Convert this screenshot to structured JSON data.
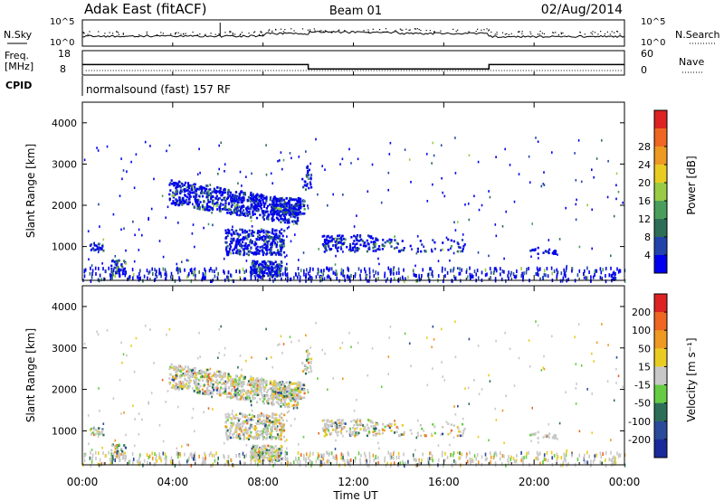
{
  "header": {
    "station": "Adak East (fitACF)",
    "beam": "Beam 01",
    "date": "02/Aug/2014"
  },
  "noise_panel": {
    "left_label": "N.Sky",
    "right_label": "N.Search",
    "left_ticks": [
      "10^5",
      "10^0"
    ],
    "right_ticks": [
      "10^5",
      "10^0"
    ]
  },
  "freq_panel": {
    "left_label_1": "Freq.",
    "left_label_2": "[MHz]",
    "left_ticks": [
      "18",
      "8"
    ],
    "right_ticks": [
      "60",
      "0"
    ],
    "right_label": "Nave",
    "cpid_label": "CPID",
    "cpid_text": "normalsound (fast) 157 RF",
    "freq_steps": [
      {
        "start_h": 0.0,
        "end_h": 10.0,
        "freq_mhz": 12.8
      },
      {
        "start_h": 10.0,
        "end_h": 18.0,
        "freq_mhz": 10.6
      },
      {
        "start_h": 18.0,
        "end_h": 24.0,
        "freq_mhz": 12.8
      }
    ],
    "nave_level": 11
  },
  "chart_data": [
    {
      "type": "heatmap",
      "name": "power",
      "ylabel": "Slant Range [km]",
      "y_ticks": [
        "1000",
        "2000",
        "3000",
        "4000"
      ],
      "y_tick_values": [
        1000,
        2000,
        3000,
        4000
      ],
      "ylim": [
        180,
        4500
      ],
      "xlim": [
        0,
        24
      ],
      "colorbar_label": "Power [dB]",
      "colorbar_ticks": [
        "4",
        "8",
        "12",
        "16",
        "20",
        "24",
        "28"
      ],
      "colorbar_colors": [
        "#0000ee",
        "#2244aa",
        "#2e6e58",
        "#4a9e5c",
        "#99cc44",
        "#e8cc22",
        "#ee9922",
        "#ee6622",
        "#dd2222"
      ]
    },
    {
      "type": "heatmap",
      "name": "velocity",
      "ylabel": "Slant Range [km]",
      "y_ticks": [
        "1000",
        "2000",
        "3000",
        "4000"
      ],
      "y_tick_values": [
        1000,
        2000,
        3000,
        4000
      ],
      "ylim": [
        180,
        4500
      ],
      "xlim": [
        0,
        24
      ],
      "colorbar_label": "Velocity [m s⁻¹]",
      "colorbar_ticks": [
        "200",
        "100",
        "50",
        "15",
        "-15",
        "-50",
        "-100",
        "-200"
      ],
      "colorbar_colors": [
        "#1a2a9a",
        "#2a4a9a",
        "#2e6e58",
        "#66cc44",
        "#c8c8c8",
        "#e8cc22",
        "#ee9922",
        "#ee6622",
        "#dd2222"
      ]
    }
  ],
  "x_axis": {
    "label": "Time UT",
    "ticks": [
      "00:00",
      "04:00",
      "08:00",
      "12:00",
      "16:00",
      "20:00",
      "00:00"
    ],
    "tick_hours": [
      0,
      4,
      8,
      12,
      16,
      20,
      24
    ]
  }
}
